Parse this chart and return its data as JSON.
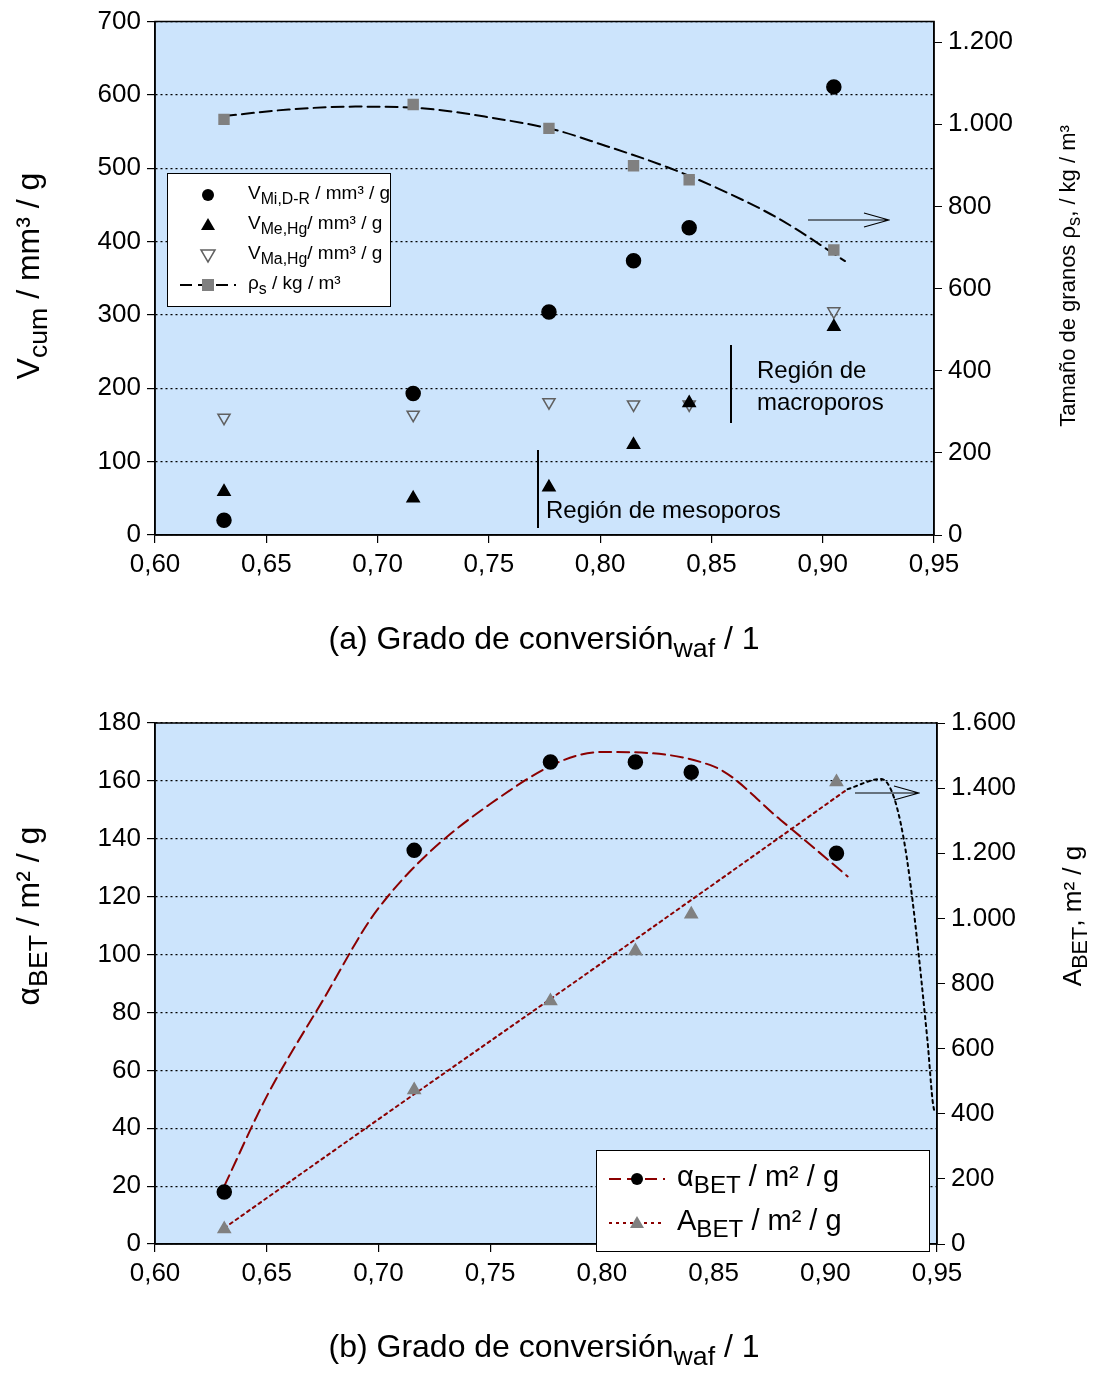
{
  "chart_data": [
    {
      "type": "scatter",
      "xlabel": "(a) Grado de conversión$_{waf}$ / 1",
      "ylabel": "V$_{cum}$ / mm³ / g",
      "y2label": "Tamaño de granos ρ$_{s}$, / kg / m³",
      "x": [
        0.631,
        0.716,
        0.777,
        0.815,
        0.84,
        0.905
      ],
      "series": [
        {
          "name": "V$_{Mi,D-R}$ / mm³ / g",
          "type": "scatter",
          "marker": "circle",
          "color": "#000000",
          "values": [
            20,
            193,
            304,
            374,
            419,
            611
          ]
        },
        {
          "name": "V$_{Me,Hg}$/ mm³ / g",
          "type": "scatter",
          "marker": "triangle",
          "color": "#000000",
          "values": [
            59,
            50,
            65,
            123,
            180,
            284
          ]
        },
        {
          "name": "V$_{Ma,Hg}$/ mm³ / g",
          "type": "scatter",
          "marker": "triangle-down",
          "color": "#606060",
          "values": [
            160,
            164,
            181,
            178,
            178,
            305
          ]
        },
        {
          "name": "ρ$_{s}$ /  kg / m³",
          "type": "scatter",
          "marker": "square",
          "color": "#808080",
          "axis": "y2",
          "values": [
            1012,
            1048,
            990,
            899,
            865,
            694
          ]
        },
        {
          "type": "line",
          "marker": "none",
          "line_style": "dashed",
          "color": "#000000",
          "axis": "y2",
          "x": [
            0.631,
            0.66,
            0.69,
            0.72,
            0.75,
            0.78,
            0.8,
            0.83,
            0.85,
            0.88,
            0.91
          ],
          "values": [
            1020,
            1036,
            1043,
            1039,
            1017,
            986,
            952,
            896,
            851,
            771,
            667
          ]
        }
      ],
      "xlim": [
        0.6,
        0.95
      ],
      "xticks": [
        {
          "value": 0.6,
          "label": "0,60"
        },
        {
          "value": 0.65,
          "label": "0,65"
        },
        {
          "value": 0.7,
          "label": "0,70"
        },
        {
          "value": 0.75,
          "label": "0,75"
        },
        {
          "value": 0.8,
          "label": "0,80"
        },
        {
          "value": 0.85,
          "label": "0,85"
        },
        {
          "value": 0.9,
          "label": "0,90"
        },
        {
          "value": 0.95,
          "label": "0,95"
        }
      ],
      "ylim": [
        0,
        700
      ],
      "yticks": [
        0,
        100,
        200,
        300,
        400,
        500,
        600,
        700
      ],
      "y2lim": [
        0,
        1250
      ],
      "y2ticks": [
        0,
        200,
        400,
        600,
        800,
        {
          "value": 1000,
          "label": "1.000"
        },
        {
          "value": 1200,
          "label": "1.200"
        }
      ],
      "grid": "y",
      "legend": "top left",
      "annotations": [
        "Región de mesoporos",
        "Región de macroporos"
      ]
    },
    {
      "type": "scatter",
      "xlabel": "(b) Grado de conversión$_{waf}$ / 1",
      "ylabel": "α$_{BET}$ / m² / g",
      "y2label": "A$_{BET}$, m² / g",
      "x": [
        0.631,
        0.716,
        0.777,
        0.815,
        0.84,
        0.905
      ],
      "series": [
        {
          "name": "α$_{BET}$ / m² / g",
          "type": "scatter",
          "marker": "circle",
          "color": "#000000",
          "values": [
            18,
            136,
            166.5,
            166.5,
            163,
            135
          ]
        },
        {
          "type": "line",
          "marker": "none",
          "line_style": "dashed",
          "color": "#8b0000",
          "x": [
            0.631,
            0.65,
            0.675,
            0.7,
            0.75,
            0.8,
            0.85,
            0.88,
            0.91
          ],
          "values": [
            20,
            51,
            84,
            116,
            152,
            170,
            165,
            146.5,
            127
          ]
        },
        {
          "name": "A$_{BET}$ / m² / g",
          "type": "scatter",
          "marker": "triangle",
          "color": "#808080",
          "axis": "y2",
          "values": [
            46,
            473,
            746,
            900,
            1013,
            1419
          ]
        },
        {
          "type": "line",
          "marker": "none",
          "line_style": "dotted",
          "color": "#8b0000",
          "axis": "y2",
          "x": [
            0.631,
            0.7,
            0.75,
            0.8,
            0.85,
            0.91
          ],
          "values": [
            49,
            383,
            623,
            863,
            1105,
            1397
          ]
        },
        {
          "type": "line",
          "marker": "none",
          "line_style": "dotted",
          "color": "#000000",
          "axis": "y2",
          "x": [
            0.91,
            0.925,
            0.935,
            0.9457,
            0.948,
            0.949
          ],
          "values": [
            1397,
            1428,
            1248,
            627,
            442,
            400
          ]
        }
      ],
      "xlim": [
        0.6,
        0.95
      ],
      "xticks": [
        {
          "value": 0.6,
          "label": "0,60"
        },
        {
          "value": 0.65,
          "label": "0,65"
        },
        {
          "value": 0.7,
          "label": "0,70"
        },
        {
          "value": 0.75,
          "label": "0,75"
        },
        {
          "value": 0.8,
          "label": "0,80"
        },
        {
          "value": 0.85,
          "label": "0,85"
        },
        {
          "value": 0.9,
          "label": "0,90"
        },
        {
          "value": 0.95,
          "label": "0,95"
        }
      ],
      "ylim": [
        0,
        180
      ],
      "yticks": [
        0,
        20,
        40,
        60,
        80,
        100,
        120,
        140,
        160,
        180
      ],
      "y2lim": [
        0,
        1600
      ],
      "y2ticks": [
        0,
        200,
        400,
        600,
        800,
        {
          "value": 1000,
          "label": "1.000"
        },
        {
          "value": 1200,
          "label": "1.200"
        },
        {
          "value": 1400,
          "label": "1.400"
        },
        {
          "value": 1600,
          "label": "1.600"
        }
      ],
      "grid": "y",
      "legend": "bottom right"
    }
  ]
}
